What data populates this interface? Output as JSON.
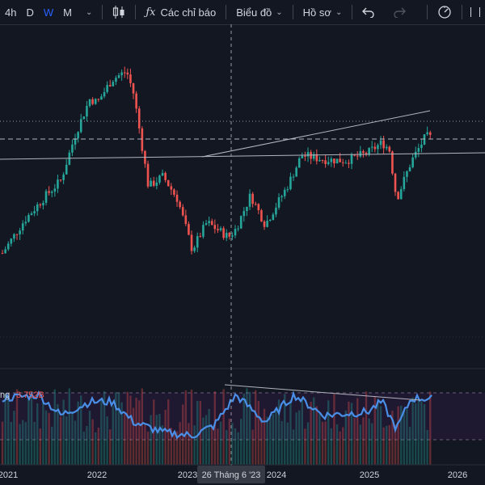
{
  "toolbar": {
    "intervals": [
      {
        "label": "4h",
        "active": false
      },
      {
        "label": "D",
        "active": false
      },
      {
        "label": "W",
        "active": true
      },
      {
        "label": "M",
        "active": false
      }
    ],
    "indicators_label": "Các chỉ báo",
    "layout_label": "Biểu đồ",
    "profile_label": "Hồ sơ",
    "indicators_icon": "fx-icon",
    "chart_type_icon": "candlestick-icon",
    "undo_icon": "undo-icon",
    "redo_icon": "redo-icon",
    "right_icon": "speedometer-icon"
  },
  "volume_pane": {
    "label_partial": "ng",
    "value": "3.752B"
  },
  "crosshair": {
    "date_label": "26 Tháng 6 '23"
  },
  "time_axis": {
    "labels": [
      "2021",
      "2022",
      "2023",
      "2024",
      "2025",
      "2026"
    ]
  },
  "colors": {
    "background": "#131722",
    "up": "#26a69a",
    "down": "#ef5350",
    "volume_line": "#4a8fe7",
    "accent": "#2962ff",
    "volume_value": "#ef5350"
  },
  "chart_data": {
    "type": "candlestick",
    "x_range": [
      "2020-09",
      "2026-05"
    ],
    "close_path": [
      {
        "date": "2020-10",
        "close": 42
      },
      {
        "date": "2021-01",
        "close": 120
      },
      {
        "date": "2021-04",
        "close": 180
      },
      {
        "date": "2021-06",
        "close": 215
      },
      {
        "date": "2021-08",
        "close": 325
      },
      {
        "date": "2021-10",
        "close": 410
      },
      {
        "date": "2021-11",
        "close": 400
      },
      {
        "date": "2022-01",
        "close": 455
      },
      {
        "date": "2022-03",
        "close": 475
      },
      {
        "date": "2022-04",
        "close": 420
      },
      {
        "date": "2022-06",
        "close": 200
      },
      {
        "date": "2022-08",
        "close": 225
      },
      {
        "date": "2022-10",
        "close": 170
      },
      {
        "date": "2022-12",
        "close": 50
      },
      {
        "date": "2023-02",
        "close": 115
      },
      {
        "date": "2023-05",
        "close": 80
      },
      {
        "date": "2023-06",
        "close": 100
      },
      {
        "date": "2023-08",
        "close": 180
      },
      {
        "date": "2023-10",
        "close": 110
      },
      {
        "date": "2024-01",
        "close": 200
      },
      {
        "date": "2024-03",
        "close": 275
      },
      {
        "date": "2024-06",
        "close": 265
      },
      {
        "date": "2024-09",
        "close": 262
      },
      {
        "date": "2024-12",
        "close": 280
      },
      {
        "date": "2025-02",
        "close": 305
      },
      {
        "date": "2025-03",
        "close": 290
      },
      {
        "date": "2025-04",
        "close": 170
      },
      {
        "date": "2025-06",
        "close": 260
      },
      {
        "date": "2025-08",
        "close": 320
      },
      {
        "date": "2025-09",
        "close": 315
      }
    ],
    "volume_indicator_path": [
      {
        "date": "2020-10",
        "value": 0.8
      },
      {
        "date": "2021-03",
        "value": 0.85
      },
      {
        "date": "2021-06",
        "value": 0.55
      },
      {
        "date": "2021-10",
        "value": 0.75
      },
      {
        "date": "2022-01",
        "value": 0.75
      },
      {
        "date": "2022-04",
        "value": 0.45
      },
      {
        "date": "2022-08",
        "value": 0.3
      },
      {
        "date": "2022-12",
        "value": 0.25
      },
      {
        "date": "2023-03",
        "value": 0.4
      },
      {
        "date": "2023-06",
        "value": 0.85
      },
      {
        "date": "2023-10",
        "value": 0.45
      },
      {
        "date": "2024-02",
        "value": 0.85
      },
      {
        "date": "2024-06",
        "value": 0.55
      },
      {
        "date": "2024-12",
        "value": 0.6
      },
      {
        "date": "2025-02",
        "value": 0.75
      },
      {
        "date": "2025-04",
        "value": 0.35
      },
      {
        "date": "2025-06",
        "value": 0.8
      },
      {
        "date": "2025-09",
        "value": 0.8
      }
    ]
  }
}
